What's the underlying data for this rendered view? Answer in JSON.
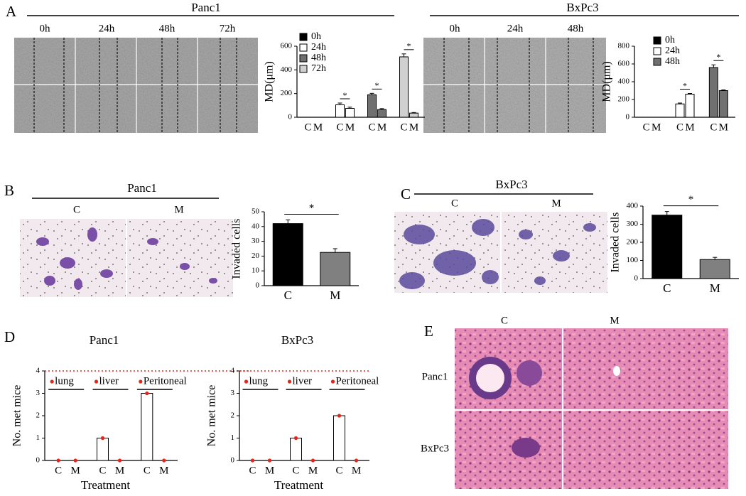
{
  "panels": {
    "labels": [
      "A",
      "B",
      "C",
      "D",
      "E"
    ]
  },
  "A": {
    "panc1_title": "Panc1",
    "panc1_times": [
      "0h",
      "24h",
      "48h",
      "72h"
    ],
    "bxpc3_title": "BxPc3",
    "bxpc3_times": [
      "0h",
      "24h",
      "48h"
    ]
  },
  "B": {
    "title": "Panc1",
    "columns": [
      "C",
      "M"
    ]
  },
  "C": {
    "title": "BxPc3",
    "columns": [
      "C",
      "M"
    ]
  },
  "E": {
    "columns": [
      "C",
      "M"
    ],
    "rows": [
      "Panc1",
      "BxPc3"
    ]
  },
  "chart_data": [
    {
      "type": "bar",
      "ylabel": "MD(μm)",
      "categories": [
        "C",
        "M"
      ],
      "series": [
        {
          "name": "0h",
          "color": "#000000",
          "values": [
            0,
            0
          ],
          "errors": [
            0,
            0
          ]
        },
        {
          "name": "24h",
          "color": "#ffffff",
          "values": [
            105,
            75
          ],
          "errors": [
            15,
            10
          ]
        },
        {
          "name": "48h",
          "color": "#707070",
          "values": [
            190,
            65
          ],
          "errors": [
            12,
            8
          ]
        },
        {
          "name": "72h",
          "color": "#d0d0d0",
          "values": [
            510,
            35
          ],
          "errors": [
            25,
            5
          ]
        }
      ],
      "ylim": [
        0,
        600
      ],
      "yticks": [
        0,
        200,
        400,
        600
      ],
      "legend": "top-left",
      "significance": [
        {
          "series": 1,
          "label": "*"
        },
        {
          "series": 2,
          "label": "*"
        },
        {
          "series": 3,
          "label": "*"
        }
      ]
    },
    {
      "type": "bar",
      "ylabel": "MD(μm)",
      "categories": [
        "C",
        "M"
      ],
      "series": [
        {
          "name": "0h",
          "color": "#000000",
          "values": [
            0,
            0
          ],
          "errors": [
            0,
            0
          ]
        },
        {
          "name": "24h",
          "color": "#ffffff",
          "values": [
            150,
            260
          ],
          "errors": [
            10,
            8
          ]
        },
        {
          "name": "48h",
          "color": "#707070",
          "values": [
            560,
            300
          ],
          "errors": [
            30,
            8
          ]
        }
      ],
      "ylim": [
        0,
        800
      ],
      "yticks": [
        0,
        200,
        400,
        600,
        800
      ],
      "legend": "top-left",
      "significance": [
        {
          "series": 1,
          "label": "*"
        },
        {
          "series": 2,
          "label": "*"
        }
      ]
    },
    {
      "type": "bar",
      "ylabel": "Invaded cells",
      "categories": [
        "C",
        "M"
      ],
      "values": [
        42,
        22.5
      ],
      "errors": [
        2.5,
        2.5
      ],
      "colors": [
        "#000000",
        "#808080"
      ],
      "ylim": [
        0,
        50
      ],
      "yticks": [
        0,
        10,
        20,
        30,
        40,
        50
      ],
      "significance": "*"
    },
    {
      "type": "bar",
      "ylabel": "Invaded cells",
      "categories": [
        "C",
        "M"
      ],
      "values": [
        350,
        105
      ],
      "errors": [
        20,
        12
      ],
      "colors": [
        "#000000",
        "#808080"
      ],
      "ylim": [
        0,
        400
      ],
      "yticks": [
        0,
        100,
        200,
        300,
        400
      ],
      "significance": "*"
    },
    {
      "type": "bar",
      "title": "Panc1",
      "xlabel": "Treatment",
      "ylabel": "No. met mice",
      "categories": [
        "C",
        "M"
      ],
      "series": [
        {
          "name": "lung",
          "values": [
            0,
            0
          ]
        },
        {
          "name": "liver",
          "values": [
            1,
            0
          ]
        },
        {
          "name": "Peritoneal",
          "values": [
            3,
            0
          ]
        }
      ],
      "color": "#ffffff",
      "point_color": "#e8231b",
      "reference_line": 4,
      "reference_color": "#e8231b",
      "ylim": [
        0,
        4
      ],
      "yticks": [
        0,
        1,
        2,
        3,
        4
      ]
    },
    {
      "type": "bar",
      "title": "BxPc3",
      "xlabel": "Treatment",
      "ylabel": "No. met mice",
      "categories": [
        "C",
        "M"
      ],
      "series": [
        {
          "name": "lung",
          "values": [
            0,
            0
          ]
        },
        {
          "name": "liver",
          "values": [
            1,
            0
          ]
        },
        {
          "name": "Peritoneal",
          "values": [
            2,
            0
          ]
        }
      ],
      "color": "#ffffff",
      "point_color": "#e8231b",
      "reference_line": 4,
      "reference_color": "#e8231b",
      "ylim": [
        0,
        4
      ],
      "yticks": [
        0,
        1,
        2,
        3,
        4
      ]
    }
  ]
}
